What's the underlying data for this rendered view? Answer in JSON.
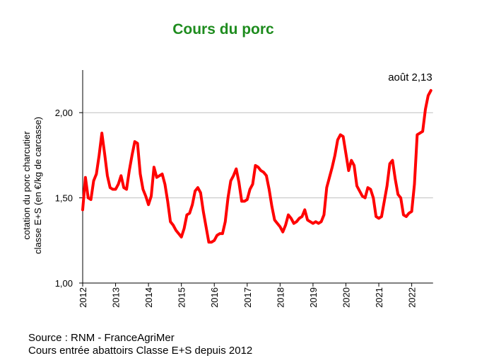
{
  "chart_data": {
    "type": "line",
    "title": "Cours du porc",
    "ylabel": [
      "cotation du porc charcutier",
      "classe E+S  (en €/kg de carcasse)"
    ],
    "annotation": "août 2,13",
    "source": [
      "Source : RNM - FranceAgriMer",
      "Cours entrée abattoirs Classe E+S  depuis 2012"
    ],
    "color": "#ff0000",
    "categories": [
      "2012",
      null,
      null,
      null,
      null,
      null,
      null,
      null,
      null,
      null,
      null,
      null,
      "2013",
      null,
      null,
      null,
      null,
      null,
      null,
      null,
      null,
      null,
      null,
      null,
      "2014",
      null,
      null,
      null,
      null,
      null,
      null,
      null,
      null,
      null,
      null,
      null,
      "2015",
      null,
      null,
      null,
      null,
      null,
      null,
      null,
      null,
      null,
      null,
      null,
      "2016",
      null,
      null,
      null,
      null,
      null,
      null,
      null,
      null,
      null,
      null,
      null,
      "2017",
      null,
      null,
      null,
      null,
      null,
      null,
      null,
      null,
      null,
      null,
      null,
      "2018",
      null,
      null,
      null,
      null,
      null,
      null,
      null,
      null,
      null,
      null,
      null,
      "2019",
      null,
      null,
      null,
      null,
      null,
      null,
      null,
      null,
      null,
      null,
      null,
      "2020",
      null,
      null,
      null,
      null,
      null,
      null,
      null,
      null,
      null,
      null,
      null,
      "2021",
      null,
      null,
      null,
      null,
      null,
      null,
      null,
      null,
      null,
      null,
      null,
      "2022",
      null,
      null,
      null,
      null,
      null,
      null,
      null
    ],
    "values": [
      1.43,
      1.62,
      1.5,
      1.49,
      1.6,
      1.64,
      1.75,
      1.88,
      1.76,
      1.63,
      1.56,
      1.55,
      1.55,
      1.58,
      1.63,
      1.56,
      1.55,
      1.66,
      1.75,
      1.83,
      1.82,
      1.64,
      1.55,
      1.51,
      1.46,
      1.51,
      1.68,
      1.62,
      1.63,
      1.64,
      1.58,
      1.48,
      1.36,
      1.34,
      1.31,
      1.29,
      1.27,
      1.32,
      1.4,
      1.41,
      1.46,
      1.54,
      1.56,
      1.53,
      1.42,
      1.33,
      1.24,
      1.24,
      1.25,
      1.28,
      1.29,
      1.29,
      1.36,
      1.5,
      1.6,
      1.63,
      1.67,
      1.59,
      1.48,
      1.48,
      1.49,
      1.55,
      1.58,
      1.69,
      1.68,
      1.66,
      1.65,
      1.63,
      1.55,
      1.45,
      1.37,
      1.35,
      1.33,
      1.3,
      1.34,
      1.4,
      1.38,
      1.35,
      1.36,
      1.38,
      1.39,
      1.43,
      1.37,
      1.36,
      1.35,
      1.36,
      1.35,
      1.36,
      1.4,
      1.56,
      1.62,
      1.68,
      1.75,
      1.84,
      1.87,
      1.86,
      1.76,
      1.66,
      1.72,
      1.69,
      1.57,
      1.54,
      1.51,
      1.5,
      1.56,
      1.55,
      1.5,
      1.39,
      1.38,
      1.39,
      1.48,
      1.57,
      1.7,
      1.72,
      1.61,
      1.52,
      1.5,
      1.4,
      1.39,
      1.41,
      1.42,
      1.58,
      1.87,
      1.88,
      1.89,
      2.02,
      2.1,
      2.13
    ],
    "ylim": [
      1,
      2.25
    ],
    "yticks": [
      {
        "value": 1,
        "label": "1,00"
      },
      {
        "value": 1.5,
        "label": "1,50"
      },
      {
        "value": 2,
        "label": "2,00"
      }
    ],
    "grid": true
  }
}
